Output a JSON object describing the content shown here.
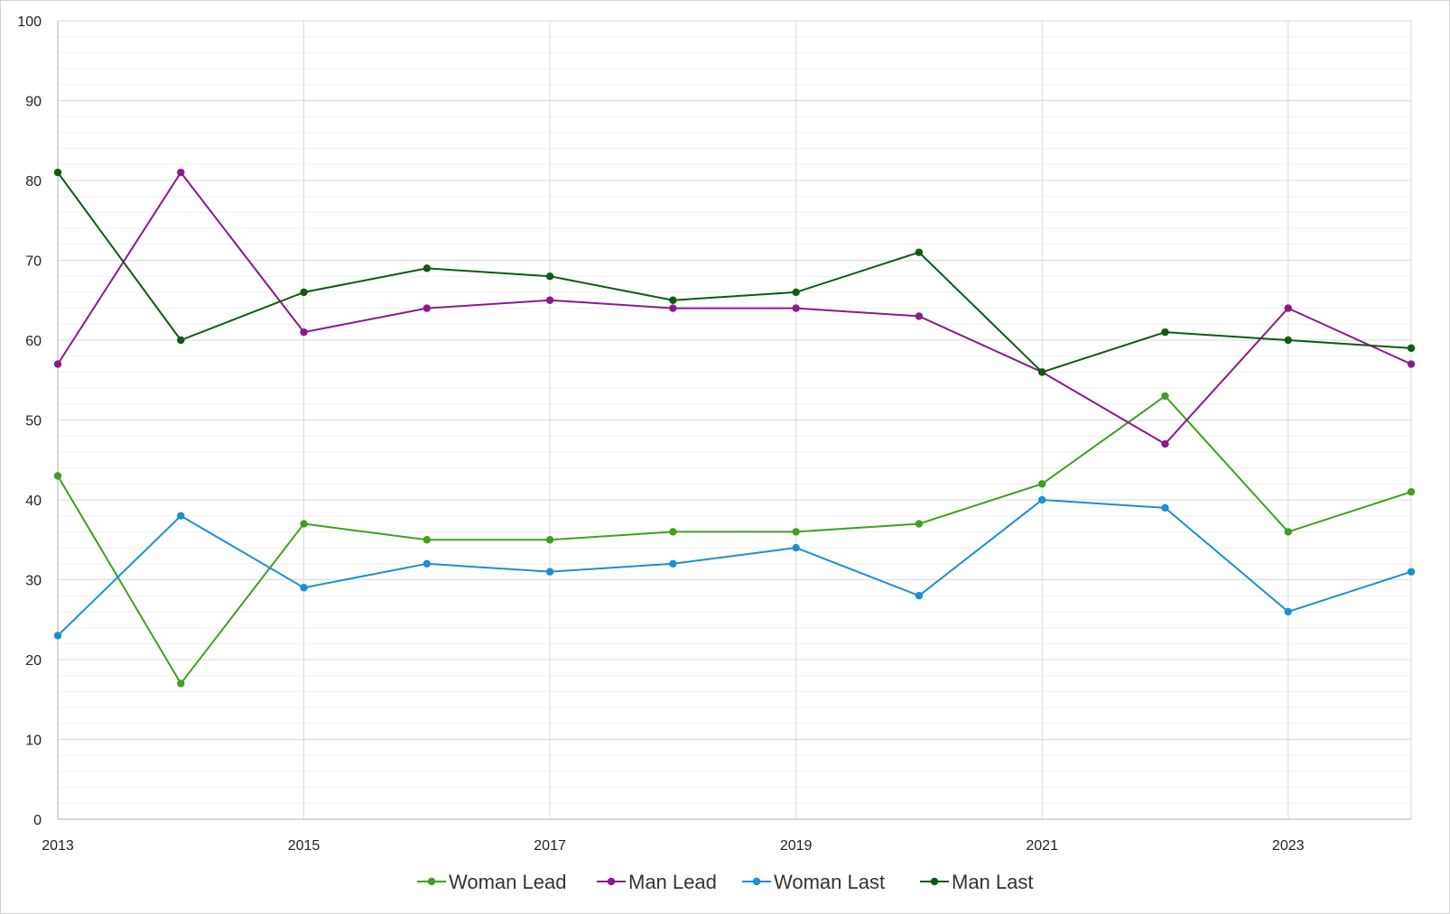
{
  "chart_data": {
    "type": "line",
    "title": "",
    "xlabel": "",
    "ylabel": "",
    "x": [
      2013,
      2014,
      2015,
      2016,
      2017,
      2018,
      2019,
      2020,
      2021,
      2022,
      2023,
      2024
    ],
    "x_tick_labels": [
      "2013",
      "2015",
      "2017",
      "2019",
      "2021",
      "2023"
    ],
    "xlim": [
      2013,
      2024
    ],
    "ylim": [
      0,
      100
    ],
    "y_tick_labels": [
      "0",
      "10",
      "20",
      "30",
      "40",
      "50",
      "60",
      "70",
      "80",
      "90",
      "100"
    ],
    "grid": true,
    "legend_position": "bottom",
    "series": [
      {
        "name": "Woman Lead",
        "color": "#3f9f1f",
        "values": [
          43,
          17,
          37,
          35,
          35,
          36,
          36,
          37,
          42,
          53,
          36,
          41
        ]
      },
      {
        "name": "Man Lead",
        "color": "#8c1a8c",
        "values": [
          57,
          81,
          61,
          64,
          65,
          64,
          64,
          63,
          56,
          47,
          64,
          57
        ]
      },
      {
        "name": "Woman Last",
        "color": "#1a90d0",
        "values": [
          23,
          38,
          29,
          32,
          31,
          32,
          34,
          28,
          40,
          39,
          26,
          31
        ]
      },
      {
        "name": "Man Last",
        "color": "#0f5a12",
        "values": [
          81,
          60,
          66,
          69,
          68,
          65,
          66,
          71,
          56,
          61,
          60,
          59
        ]
      }
    ]
  }
}
